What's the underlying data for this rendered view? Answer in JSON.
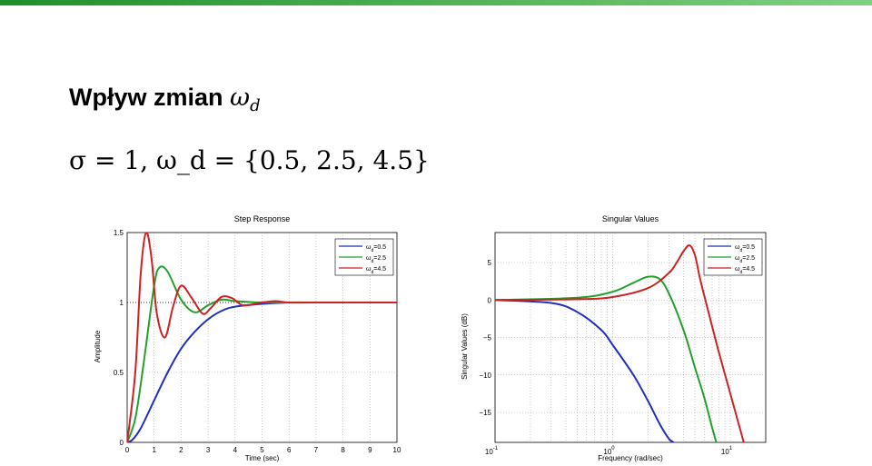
{
  "slide": {
    "title_text": "Wpływ zmian ",
    "title_symbol": "ω",
    "title_subscript": "d",
    "formula": "σ = 1, ω_d = {0.5, 2.5, 4.5}"
  },
  "colors": {
    "blue": "#1f2fbf",
    "green": "#22a12a",
    "red": "#cc2222",
    "bar": "#1f8f2a"
  },
  "chart_data": [
    {
      "type": "line",
      "title": "Step Response",
      "xlabel": "Time (sec)",
      "ylabel": "Amplitude",
      "xlim": [
        0,
        10
      ],
      "ylim": [
        0,
        1.5
      ],
      "xticks": [
        "0",
        "1",
        "2",
        "3",
        "4",
        "5",
        "6",
        "7",
        "8",
        "9",
        "10"
      ],
      "yticks": [
        "0",
        "0.5",
        "1",
        "1.5"
      ],
      "grid": true,
      "legend": "top-right",
      "series": [
        {
          "name": "ωd=0.5",
          "color": "#1f2fbf",
          "x": [
            0,
            0.2,
            0.5,
            1,
            1.5,
            2,
            2.5,
            3,
            3.5,
            4,
            5,
            6,
            7,
            8,
            10
          ],
          "y": [
            0,
            0.02,
            0.1,
            0.3,
            0.5,
            0.67,
            0.79,
            0.88,
            0.94,
            0.97,
            0.99,
            1,
            1,
            1,
            1
          ]
        },
        {
          "name": "ωd=2.5",
          "color": "#22a12a",
          "x": [
            0,
            0.3,
            0.6,
            1,
            1.2,
            1.5,
            2,
            2.5,
            3,
            3.5,
            4,
            5,
            6,
            10
          ],
          "y": [
            0,
            0.17,
            0.55,
            1.12,
            1.25,
            1.22,
            1.02,
            0.93,
            0.98,
            1.02,
            1.01,
            1,
            1,
            1
          ]
        },
        {
          "name": "ωd=4.5",
          "color": "#cc2222",
          "x": [
            0,
            0.3,
            0.5,
            0.7,
            0.9,
            1.1,
            1.4,
            1.7,
            2,
            2.4,
            2.8,
            3.1,
            3.5,
            3.9,
            4.3,
            5,
            5.5,
            6,
            7,
            10
          ],
          "y": [
            0,
            0.5,
            1.2,
            1.5,
            1.32,
            0.92,
            0.75,
            0.97,
            1.12,
            1.03,
            0.92,
            0.96,
            1.04,
            1.03,
            0.98,
            1,
            1.01,
            1,
            1,
            1
          ]
        }
      ]
    },
    {
      "type": "line",
      "title": "Singular Values",
      "xlabel": "Frequency (rad/sec)",
      "ylabel": "Singular Values (dB)",
      "xscale": "log",
      "xlim": [
        0.1,
        20
      ],
      "ylim": [
        -19,
        9
      ],
      "xticks": [
        "10^-1",
        "10^0",
        "10^1"
      ],
      "yticks": [
        "5",
        "0",
        "−5",
        "−10",
        "−15"
      ],
      "grid": true,
      "legend": "top-right",
      "series": [
        {
          "name": "ωd=0.5",
          "color": "#1f2fbf",
          "x": [
            0.1,
            0.3,
            0.5,
            0.8,
            1,
            1.5,
            2,
            2.5,
            3,
            3.3
          ],
          "y": [
            0,
            -0.4,
            -1.6,
            -4,
            -6,
            -10,
            -13.5,
            -16.5,
            -18.5,
            -19
          ]
        },
        {
          "name": "ωd=2.5",
          "color": "#22a12a",
          "x": [
            0.1,
            0.5,
            1,
            1.5,
            2,
            2.5,
            3,
            4,
            5,
            6,
            7,
            7.6
          ],
          "y": [
            0,
            0.3,
            1.1,
            2.3,
            3.1,
            2.8,
            0.9,
            -4,
            -9,
            -13,
            -17,
            -19
          ]
        },
        {
          "name": "ωd=4.5",
          "color": "#cc2222",
          "x": [
            0.1,
            0.5,
            1,
            2,
            3,
            3.5,
            4,
            4.5,
            5,
            5.5,
            6,
            7,
            8,
            10,
            12,
            13
          ],
          "y": [
            0,
            0.1,
            0.4,
            1.6,
            3.6,
            5,
            6.5,
            7.3,
            6,
            3,
            0.6,
            -3.5,
            -7,
            -12.5,
            -17,
            -19
          ]
        }
      ]
    }
  ]
}
